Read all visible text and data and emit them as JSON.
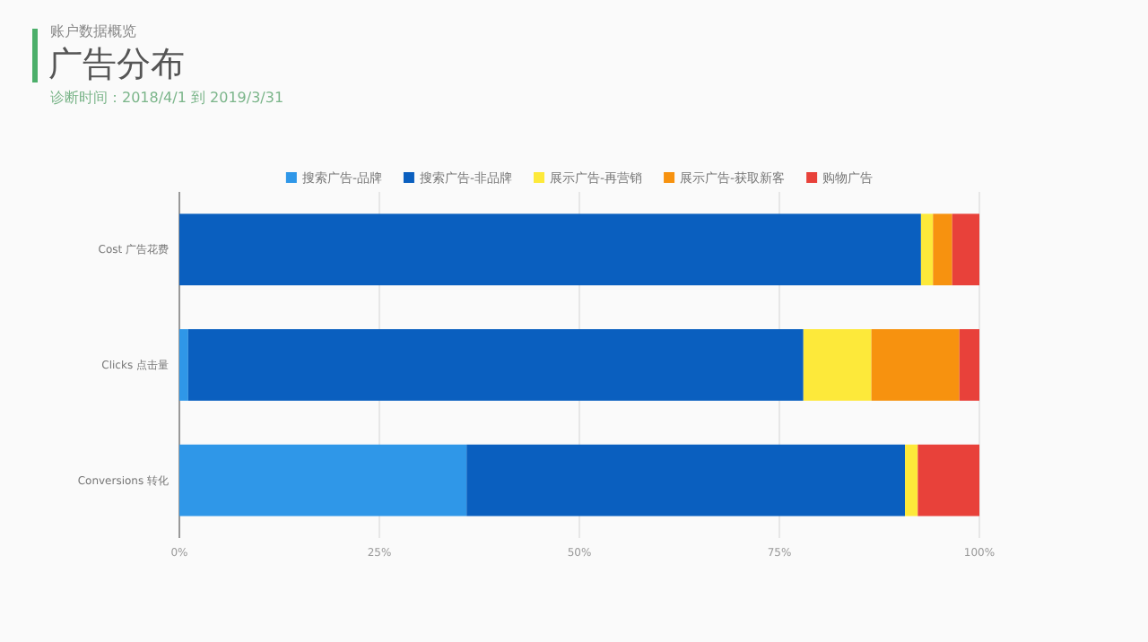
{
  "chart_data": {
    "type": "bar",
    "orientation": "horizontal",
    "stacked": true,
    "title": "广告分布",
    "subtitle": "诊断时间：2018/4/1 到 2019/3/31",
    "annotations": [
      "账户数据概览"
    ],
    "categories": [
      "Cost 广告花费",
      "Clicks 点击量",
      "Conversions 转化"
    ],
    "series": [
      {
        "name": "搜索广告-品牌",
        "color": "#2f97e8",
        "values": [
          0,
          1.1,
          35.9
        ]
      },
      {
        "name": "搜索广告-非品牌",
        "color": "#0a5fbf",
        "values": [
          92.7,
          76.9,
          54.8
        ]
      },
      {
        "name": "展示广告-再营销",
        "color": "#fde93a",
        "values": [
          1.5,
          8.5,
          1.6
        ]
      },
      {
        "name": "展示广告-获取新客",
        "color": "#f7920f",
        "values": [
          2.4,
          11.0,
          0
        ]
      },
      {
        "name": "购物广告",
        "color": "#e8413a",
        "values": [
          3.4,
          2.5,
          7.7
        ]
      }
    ],
    "xlim": [
      0,
      100
    ],
    "xticks": [
      {
        "value": 0,
        "label": "0%"
      },
      {
        "value": 25,
        "label": "25%"
      },
      {
        "value": 50,
        "label": "50%"
      },
      {
        "value": 75,
        "label": "75%"
      },
      {
        "value": 100,
        "label": "100%"
      }
    ],
    "grid": "x",
    "legend": "top"
  }
}
